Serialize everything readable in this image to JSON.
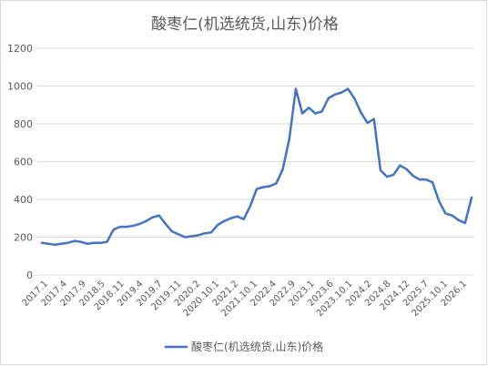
{
  "chart_data": {
    "type": "line",
    "title": "酸枣仁(机选统货,山东)价格",
    "xlabel": "",
    "ylabel": "",
    "ylim": [
      0,
      1200
    ],
    "yticks": [
      0,
      200,
      400,
      600,
      800,
      1000,
      1200
    ],
    "grid": "horizontal",
    "legend_position": "bottom",
    "line_color": "#4472c4",
    "x_tick_labels": [
      "2017.1",
      "2017.4",
      "2017.9",
      "2018.5",
      "2018.11",
      "2019.4",
      "2019.7",
      "2019.11",
      "2020.2",
      "2020.10.1",
      "2021.2",
      "2021.10.1",
      "2022.4",
      "2022.9",
      "2023.1",
      "2023.6",
      "2023.10.1",
      "2024.2",
      "2024.8",
      "2024.12",
      "2025.7",
      "2025.10.1",
      "2026.1"
    ],
    "series": [
      {
        "name": "酸枣仁(机选统货,山东)价格",
        "values": [
          170,
          165,
          160,
          165,
          170,
          180,
          175,
          165,
          170,
          170,
          175,
          240,
          255,
          255,
          260,
          270,
          285,
          305,
          315,
          270,
          230,
          215,
          200,
          205,
          210,
          220,
          225,
          265,
          285,
          300,
          310,
          295,
          365,
          455,
          465,
          470,
          485,
          560,
          720,
          985,
          855,
          885,
          855,
          865,
          935,
          955,
          965,
          985,
          935,
          860,
          805,
          825,
          555,
          520,
          530,
          580,
          560,
          525,
          505,
          505,
          490,
          390,
          325,
          315,
          290,
          275,
          410
        ]
      }
    ]
  }
}
